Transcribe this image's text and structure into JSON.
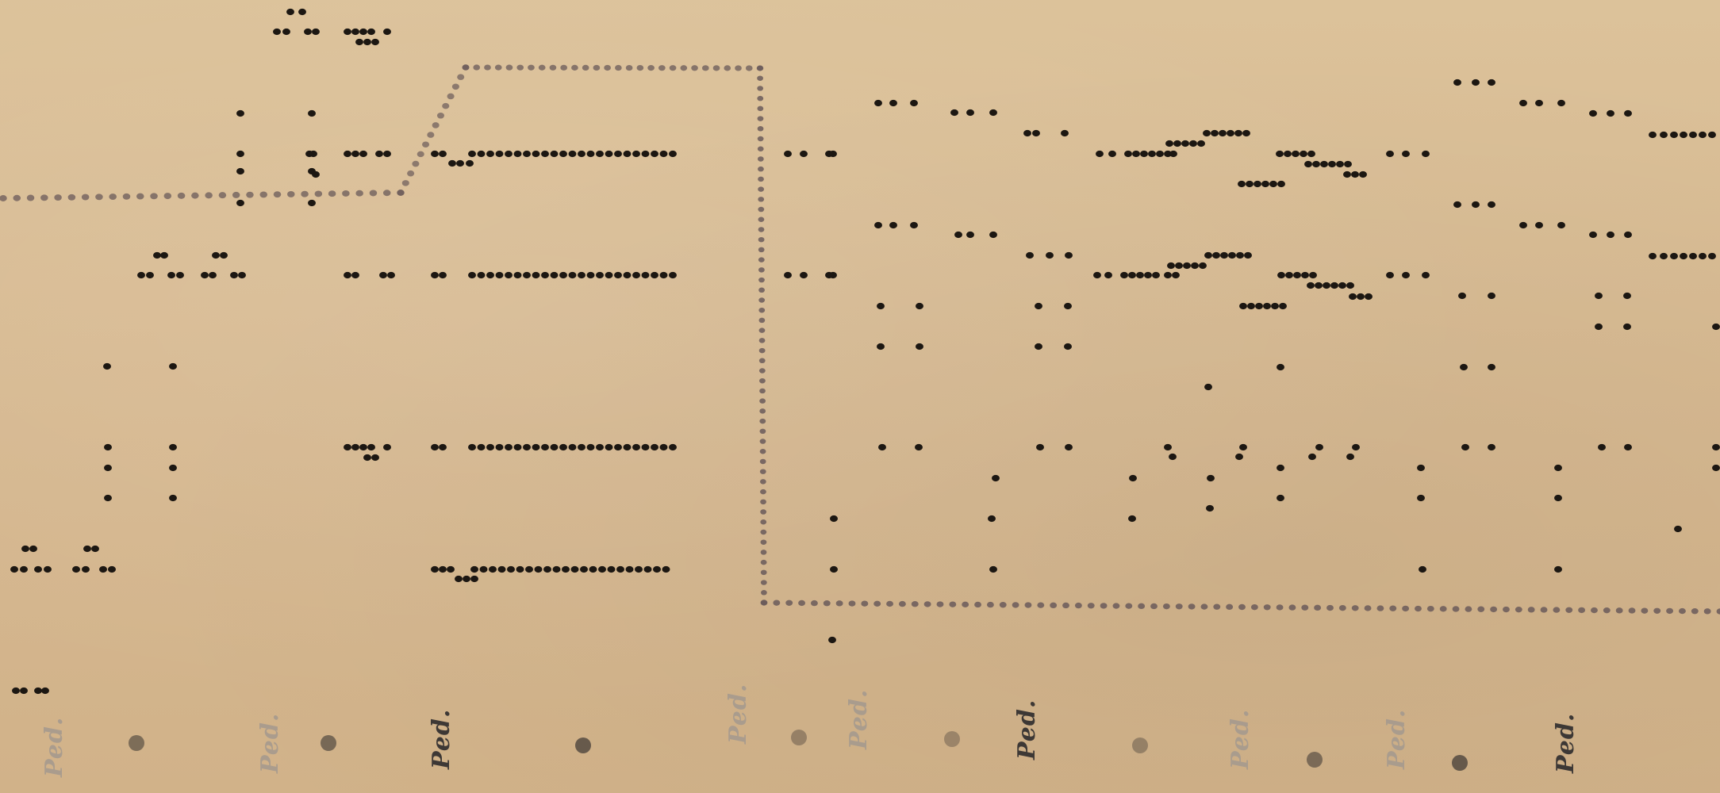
{
  "roll": {
    "description_text": "",
    "pedal_marking": "Ped.",
    "colors": {
      "paper": "#d8bc94",
      "perforation": "#1c1712",
      "pedal_line": "#6a5a5a",
      "ped_text_dark": "#3d3835",
      "ped_text_light": "#a69a8e"
    }
  }
}
